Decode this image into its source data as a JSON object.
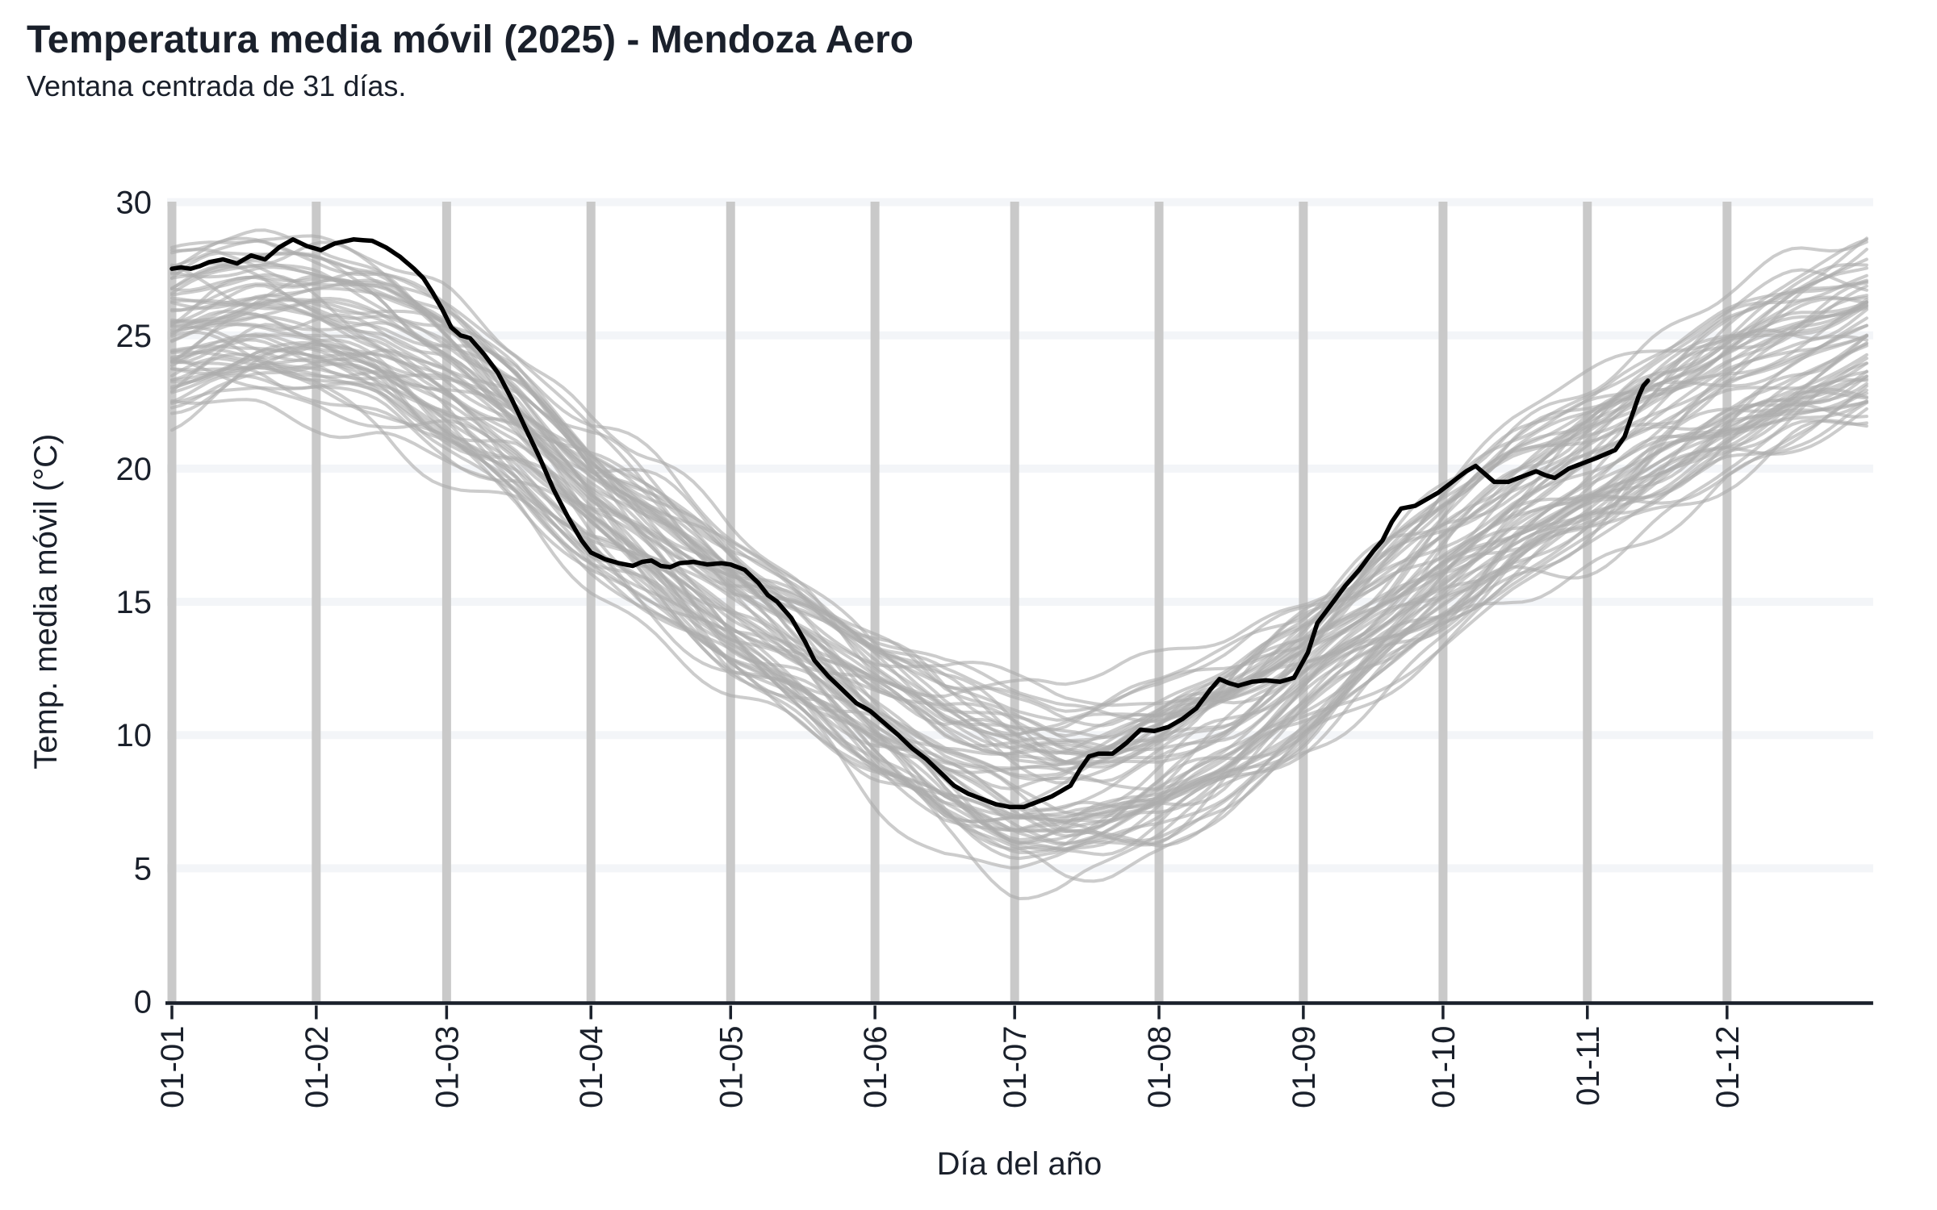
{
  "header": {
    "title": "Temperatura media móvil (2025) - Mendoza Aero",
    "subtitle": "Ventana centrada de 31 días."
  },
  "chart_data": {
    "type": "line",
    "title": "Temperatura media móvil (2025) - Mendoza Aero",
    "subtitle": "Ventana centrada de 31 días.",
    "xlabel": "Día del año",
    "ylabel": "Temp. media móvil (°C)",
    "x_tick_labels": [
      "01-01",
      "01-02",
      "01-03",
      "01-04",
      "01-05",
      "01-06",
      "01-07",
      "01-08",
      "01-09",
      "01-10",
      "01-11",
      "01-12"
    ],
    "x_tick_days": [
      1,
      32,
      60,
      91,
      121,
      152,
      182,
      213,
      244,
      274,
      305,
      335
    ],
    "y_ticks": [
      0,
      5,
      10,
      15,
      20,
      25,
      30
    ],
    "ylim": [
      0,
      30
    ],
    "xlim_days": [
      1,
      365
    ],
    "grid": {
      "x_major_color": "#c9c9c9",
      "x_major_width": 11,
      "y_major_color": "#f3f5f8",
      "y_major_width": 10,
      "axis_color": "#1a202b",
      "background": "#ffffff"
    },
    "series": [
      {
        "name": "2025",
        "role": "highlight-current-year",
        "color": "#000000",
        "stroke_width": 5.5,
        "points_day_temp": [
          [
            1,
            27.5
          ],
          [
            3,
            27.55
          ],
          [
            5,
            27.5
          ],
          [
            7,
            27.6
          ],
          [
            9,
            27.75
          ],
          [
            12,
            27.85
          ],
          [
            15,
            27.7
          ],
          [
            18,
            28.0
          ],
          [
            21,
            27.85
          ],
          [
            24,
            28.3
          ],
          [
            27,
            28.6
          ],
          [
            30,
            28.35
          ],
          [
            33,
            28.2
          ],
          [
            36,
            28.45
          ],
          [
            40,
            28.6
          ],
          [
            44,
            28.55
          ],
          [
            47,
            28.3
          ],
          [
            50,
            27.95
          ],
          [
            53,
            27.5
          ],
          [
            55,
            27.15
          ],
          [
            57,
            26.6
          ],
          [
            59,
            26.0
          ],
          [
            61,
            25.3
          ],
          [
            63,
            25.0
          ],
          [
            65,
            24.9
          ],
          [
            68,
            24.3
          ],
          [
            71,
            23.6
          ],
          [
            74,
            22.6
          ],
          [
            77,
            21.5
          ],
          [
            80,
            20.4
          ],
          [
            83,
            19.2
          ],
          [
            86,
            18.2
          ],
          [
            89,
            17.3
          ],
          [
            91,
            16.85
          ],
          [
            94,
            16.6
          ],
          [
            97,
            16.45
          ],
          [
            100,
            16.35
          ],
          [
            102,
            16.5
          ],
          [
            104,
            16.55
          ],
          [
            106,
            16.35
          ],
          [
            108,
            16.3
          ],
          [
            110,
            16.45
          ],
          [
            113,
            16.5
          ],
          [
            116,
            16.4
          ],
          [
            119,
            16.45
          ],
          [
            121,
            16.4
          ],
          [
            124,
            16.2
          ],
          [
            127,
            15.7
          ],
          [
            129,
            15.25
          ],
          [
            131,
            15.0
          ],
          [
            134,
            14.4
          ],
          [
            137,
            13.5
          ],
          [
            139,
            12.8
          ],
          [
            142,
            12.2
          ],
          [
            145,
            11.7
          ],
          [
            148,
            11.2
          ],
          [
            151,
            10.9
          ],
          [
            154,
            10.45
          ],
          [
            157,
            10.0
          ],
          [
            160,
            9.5
          ],
          [
            163,
            9.1
          ],
          [
            166,
            8.6
          ],
          [
            169,
            8.1
          ],
          [
            172,
            7.8
          ],
          [
            175,
            7.6
          ],
          [
            178,
            7.4
          ],
          [
            181,
            7.3
          ],
          [
            184,
            7.3
          ],
          [
            187,
            7.5
          ],
          [
            190,
            7.7
          ],
          [
            192,
            7.9
          ],
          [
            194,
            8.1
          ],
          [
            196,
            8.7
          ],
          [
            198,
            9.2
          ],
          [
            200,
            9.3
          ],
          [
            203,
            9.3
          ],
          [
            206,
            9.7
          ],
          [
            209,
            10.2
          ],
          [
            212,
            10.15
          ],
          [
            215,
            10.3
          ],
          [
            218,
            10.6
          ],
          [
            221,
            11.0
          ],
          [
            224,
            11.7
          ],
          [
            226,
            12.1
          ],
          [
            228,
            11.95
          ],
          [
            230,
            11.85
          ],
          [
            233,
            12.0
          ],
          [
            236,
            12.05
          ],
          [
            239,
            12.0
          ],
          [
            242,
            12.15
          ],
          [
            245,
            13.1
          ],
          [
            247,
            14.2
          ],
          [
            250,
            14.9
          ],
          [
            253,
            15.6
          ],
          [
            256,
            16.2
          ],
          [
            259,
            16.9
          ],
          [
            261,
            17.3
          ],
          [
            263,
            18.0
          ],
          [
            265,
            18.5
          ],
          [
            268,
            18.6
          ],
          [
            270,
            18.8
          ],
          [
            273,
            19.1
          ],
          [
            276,
            19.5
          ],
          [
            279,
            19.9
          ],
          [
            281,
            20.1
          ],
          [
            283,
            19.8
          ],
          [
            285,
            19.5
          ],
          [
            288,
            19.5
          ],
          [
            291,
            19.7
          ],
          [
            294,
            19.9
          ],
          [
            296,
            19.75
          ],
          [
            298,
            19.65
          ],
          [
            301,
            20.0
          ],
          [
            304,
            20.2
          ],
          [
            307,
            20.4
          ],
          [
            309,
            20.55
          ],
          [
            311,
            20.7
          ],
          [
            313,
            21.2
          ],
          [
            315,
            22.2
          ],
          [
            316,
            22.7
          ],
          [
            317,
            23.1
          ],
          [
            318,
            23.3
          ]
        ]
      },
      {
        "name": "historical-years",
        "role": "background-spaghetti",
        "color": "rgba(172,172,172,0.62)",
        "stroke_width": 4,
        "count": 60,
        "seed": 20250131,
        "mean_points_day_temp": [
          [
            1,
            25.1
          ],
          [
            10,
            25.4
          ],
          [
            20,
            25.5
          ],
          [
            32,
            25.2
          ],
          [
            46,
            24.5
          ],
          [
            60,
            23.3
          ],
          [
            75,
            21.5
          ],
          [
            91,
            19.0
          ],
          [
            106,
            17.1
          ],
          [
            121,
            14.9
          ],
          [
            136,
            13.0
          ],
          [
            152,
            10.8
          ],
          [
            167,
            9.2
          ],
          [
            182,
            8.2
          ],
          [
            192,
            7.95
          ],
          [
            202,
            8.3
          ],
          [
            213,
            9.0
          ],
          [
            228,
            10.4
          ],
          [
            244,
            12.3
          ],
          [
            259,
            14.3
          ],
          [
            274,
            16.3
          ],
          [
            289,
            18.2
          ],
          [
            305,
            19.9
          ],
          [
            320,
            21.5
          ],
          [
            335,
            23.0
          ],
          [
            350,
            24.2
          ],
          [
            365,
            25.1
          ]
        ],
        "half_width_points_day_deg": [
          [
            1,
            2.6
          ],
          [
            60,
            2.5
          ],
          [
            91,
            2.3
          ],
          [
            121,
            2.4
          ],
          [
            152,
            2.6
          ],
          [
            182,
            2.9
          ],
          [
            213,
            2.7
          ],
          [
            244,
            2.5
          ],
          [
            274,
            2.6
          ],
          [
            305,
            2.7
          ],
          [
            335,
            2.8
          ],
          [
            365,
            3.0
          ]
        ]
      }
    ],
    "layout_hints": {
      "legend": "none",
      "x_tick_label_rotation_deg": 90,
      "only_bottom_axis_line": true
    }
  }
}
